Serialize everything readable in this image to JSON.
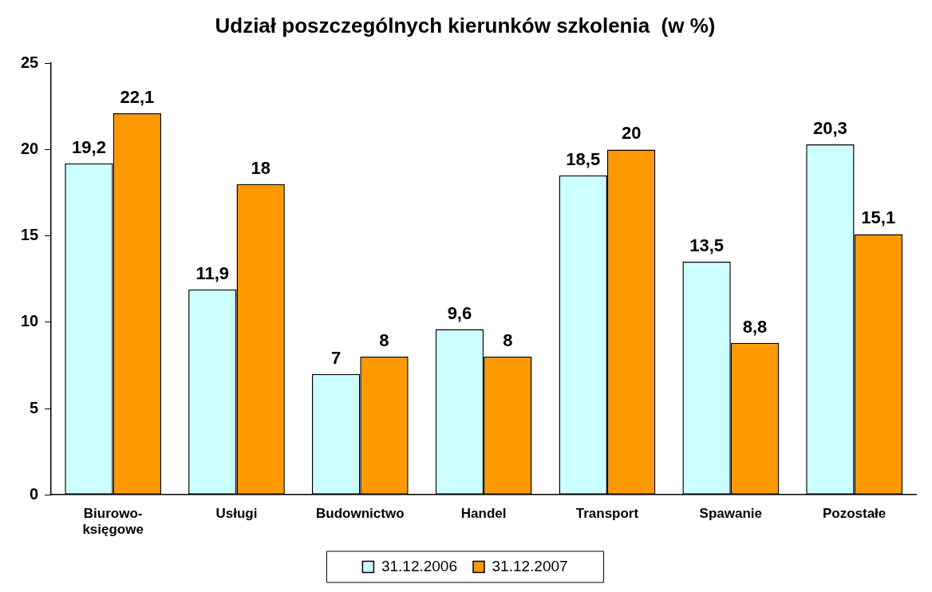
{
  "chart_data": {
    "type": "bar",
    "title": "Udział poszczególnych kierunków szkolenia  (w %)",
    "categories": [
      "Biurowo-księgowe",
      "Usługi",
      "Budownictwo",
      "Handel",
      "Transport",
      "Spawanie",
      "Pozostałe"
    ],
    "series": [
      {
        "name": "31.12.2006",
        "color": "#ccffff",
        "values": [
          19.2,
          11.9,
          7,
          9.6,
          18.5,
          13.5,
          20.3
        ],
        "value_labels": [
          "19,2",
          "11,9",
          "7",
          "9,6",
          "18,5",
          "13,5",
          "20,3"
        ]
      },
      {
        "name": "31.12.2007",
        "color": "#ff9900",
        "values": [
          22.1,
          18,
          8,
          8,
          20,
          8.8,
          15.1
        ],
        "value_labels": [
          "22,1",
          "18",
          "8",
          "8",
          "20",
          "8,8",
          "15,1"
        ]
      }
    ],
    "ylim": [
      0,
      25
    ],
    "yticks": [
      0,
      5,
      10,
      15,
      20,
      25
    ],
    "grid": false,
    "legend": "bottom"
  }
}
